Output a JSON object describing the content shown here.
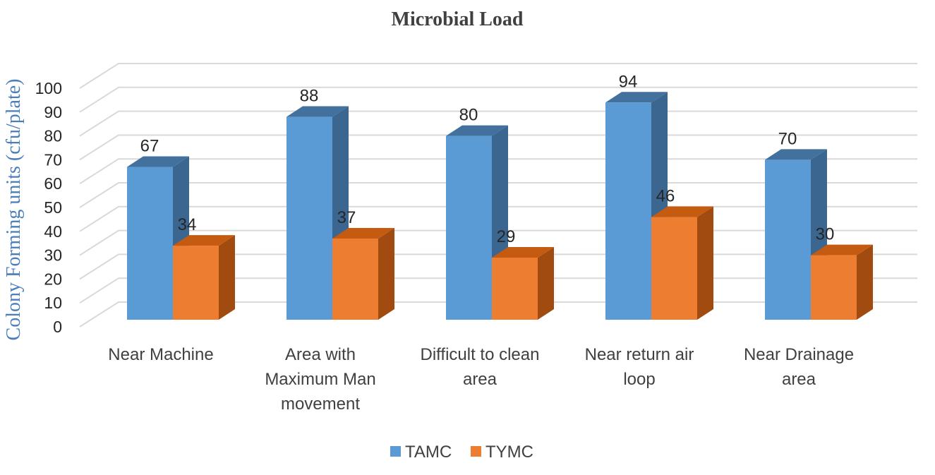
{
  "chart_data": {
    "type": "bar",
    "title": "Microbial Load",
    "xlabel": "",
    "ylabel": "Colony Forming units (cfu/plate)",
    "ylabel_color": "#4a7ebb",
    "ylim": [
      0,
      100
    ],
    "yticks": [
      0,
      10,
      20,
      30,
      40,
      50,
      60,
      70,
      80,
      90,
      100
    ],
    "grid": true,
    "legend_position": "bottom",
    "categories": [
      [
        "Near Machine"
      ],
      [
        "Area with",
        "Maximum Man",
        "movement"
      ],
      [
        "Difficult to clean",
        "area"
      ],
      [
        "Near return air",
        "loop"
      ],
      [
        "Near Drainage",
        "area"
      ]
    ],
    "series": [
      {
        "name": "TAMC",
        "values": [
          67,
          88,
          80,
          94,
          70
        ],
        "color": "#5b9bd5",
        "top_color": "#41719c",
        "side_color": "#3a6690"
      },
      {
        "name": "TYMC",
        "values": [
          34,
          37,
          29,
          46,
          30
        ],
        "color": "#ed7d31",
        "top_color": "#c55a11",
        "side_color": "#a14b10"
      }
    ]
  }
}
